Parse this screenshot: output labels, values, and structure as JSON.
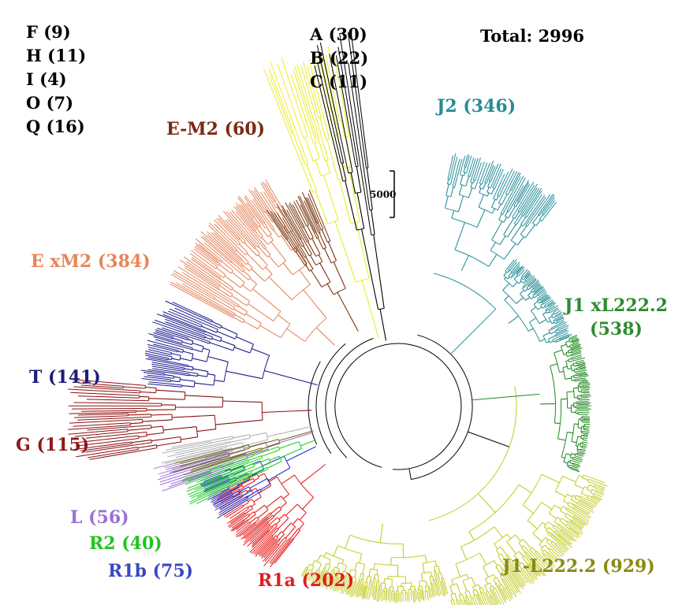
{
  "total": "Total: 2996",
  "minor_left": [
    "F (9)",
    "H (11)",
    "I (4)",
    "O (7)",
    "Q (16)"
  ],
  "minor_mid": [
    "A (30)",
    "B (22)",
    "C (11)"
  ],
  "scale": "5000",
  "clades": [
    {
      "key": "j2",
      "label": "J2 (346)",
      "color": "#2a8a94"
    },
    {
      "key": "j1x",
      "label": "J1 xL222.2",
      "label2": "(538)",
      "color": "#2e8b2e"
    },
    {
      "key": "j1l",
      "label": "J1-L222.2 (929)",
      "color": "#8a8a12"
    },
    {
      "key": "em2",
      "label": "E-M2 (60)",
      "color": "#7a2a10"
    },
    {
      "key": "exm2",
      "label": "E xM2 (384)",
      "color": "#e8855a"
    },
    {
      "key": "t",
      "label": "T (141)",
      "color": "#1c1c7a"
    },
    {
      "key": "g",
      "label": "G (115)",
      "color": "#8c1a1a"
    },
    {
      "key": "l",
      "label": "L (56)",
      "color": "#9b6fd6"
    },
    {
      "key": "r2",
      "label": "R2 (40)",
      "color": "#22c322"
    },
    {
      "key": "r1b",
      "label": "R1b (75)",
      "color": "#3a47c4"
    },
    {
      "key": "r1a",
      "label": "R1a (202)",
      "color": "#e01e1e"
    }
  ],
  "branch_colors": {
    "j2": "#2a8f9a",
    "j1x": "#1f8a1f",
    "j1l": "#c3cc2a",
    "em2": "#7a3510",
    "exm2": "#e5865d",
    "t": "#1a1a8c",
    "g": "#8c1010",
    "l": "#a070e0",
    "r2": "#26d026",
    "r1b": "#1f33d0",
    "r1a": "#e41b1b",
    "yellow": "#ecec2a",
    "grey": "#b0b0b0",
    "olive": "#6a6a10",
    "trunk": "#000000"
  }
}
